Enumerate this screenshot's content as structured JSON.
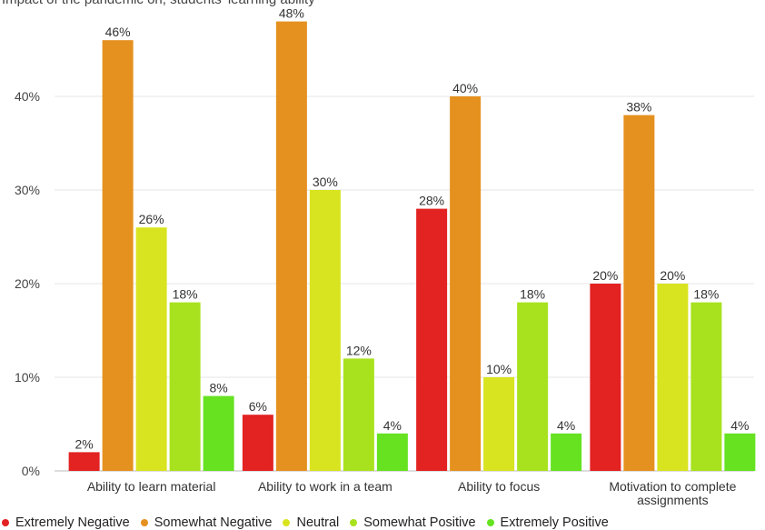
{
  "top_note": "Impact of the pandemic on, students' learning ability",
  "chart_data": {
    "type": "bar",
    "title": "",
    "xlabel": "",
    "ylabel": "",
    "ylim": [
      0,
      50
    ],
    "yticks": [
      0,
      10,
      20,
      30,
      40
    ],
    "ytick_labels": [
      "0%",
      "10%",
      "20%",
      "30%",
      "40%"
    ],
    "grid": true,
    "legend_position": "bottom",
    "categories": [
      [
        "Ability to learn material"
      ],
      [
        "Ability to work in a team"
      ],
      [
        "Ability to focus"
      ],
      [
        "Motivation to complete",
        "assignments"
      ]
    ],
    "series": [
      {
        "name": "Extremely Negative",
        "color": "#e32222",
        "values": [
          2,
          6,
          28,
          20
        ],
        "labels": [
          "2%",
          "6%",
          "28%",
          "20%"
        ]
      },
      {
        "name": "Somewhat Negative",
        "color": "#e5911f",
        "values": [
          46,
          48,
          40,
          38
        ],
        "labels": [
          "46%",
          "48%",
          "40%",
          "38%"
        ]
      },
      {
        "name": "Neutral",
        "color": "#d8e41f",
        "values": [
          26,
          30,
          10,
          20
        ],
        "labels": [
          "26%",
          "30%",
          "10%",
          "20%"
        ]
      },
      {
        "name": "Somewhat Positive",
        "color": "#a8e21e",
        "values": [
          18,
          12,
          18,
          18
        ],
        "labels": [
          "18%",
          "12%",
          "18%",
          "18%"
        ]
      },
      {
        "name": "Extremely Positive",
        "color": "#66e221",
        "values": [
          8,
          4,
          4,
          4
        ],
        "labels": [
          "8%",
          "4%",
          "4%",
          "4%"
        ]
      }
    ]
  }
}
